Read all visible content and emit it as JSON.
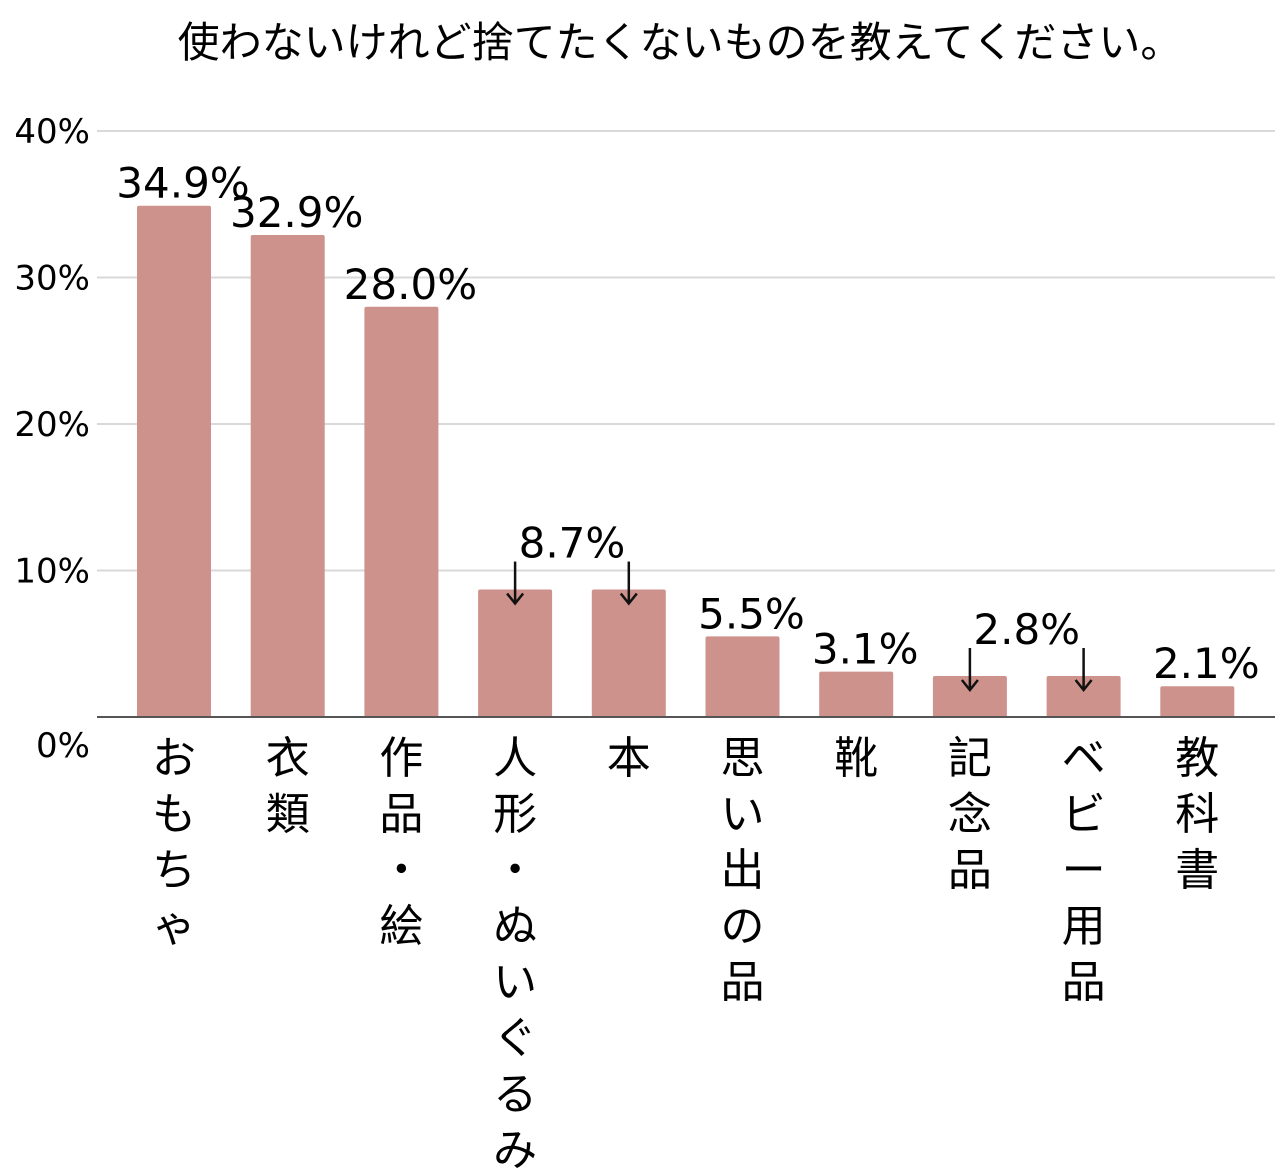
{
  "chart_data": {
    "type": "bar",
    "title": "使わないけれど捨てたくないものを教えてください。",
    "xlabel": "",
    "ylabel": "",
    "ylim": [
      0,
      40
    ],
    "yticks": [
      0,
      10,
      20,
      30,
      40
    ],
    "ytick_labels": [
      "0%",
      "10%",
      "20%",
      "30%",
      "40%"
    ],
    "grid": true,
    "categories": [
      "おもちゃ",
      "衣類",
      "作品・絵",
      "人形・ぬいぐるみ",
      "本",
      "思い出の品",
      "靴",
      "記念品",
      "ベビー用品",
      "教科書"
    ],
    "values": [
      34.9,
      32.9,
      28.0,
      8.7,
      8.7,
      5.5,
      3.1,
      2.8,
      2.8,
      2.1
    ],
    "value_labels": [
      "34.9%",
      "32.9%",
      "28.0%",
      "8.7%",
      "",
      "5.5%",
      "3.1%",
      "2.8%",
      "",
      "2.1%"
    ],
    "bar_color": "#cd928c"
  }
}
